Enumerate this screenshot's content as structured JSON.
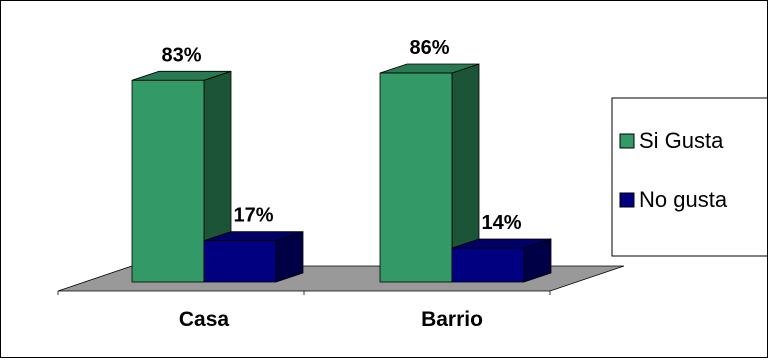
{
  "chart_data": {
    "type": "bar",
    "style": "3d-clustered-column",
    "categories": [
      "Casa",
      "Barrio"
    ],
    "series": [
      {
        "name": "Si Gusta",
        "values": [
          83,
          86
        ],
        "labels": [
          "83%",
          "86%"
        ],
        "color": "#339966"
      },
      {
        "name": "No gusta",
        "values": [
          17,
          14
        ],
        "labels": [
          "17%",
          "14%"
        ],
        "color": "#000080"
      }
    ],
    "ylim": [
      0,
      100
    ],
    "unit": "%",
    "grid": false,
    "legend": "right",
    "floor_color": "#999999"
  }
}
